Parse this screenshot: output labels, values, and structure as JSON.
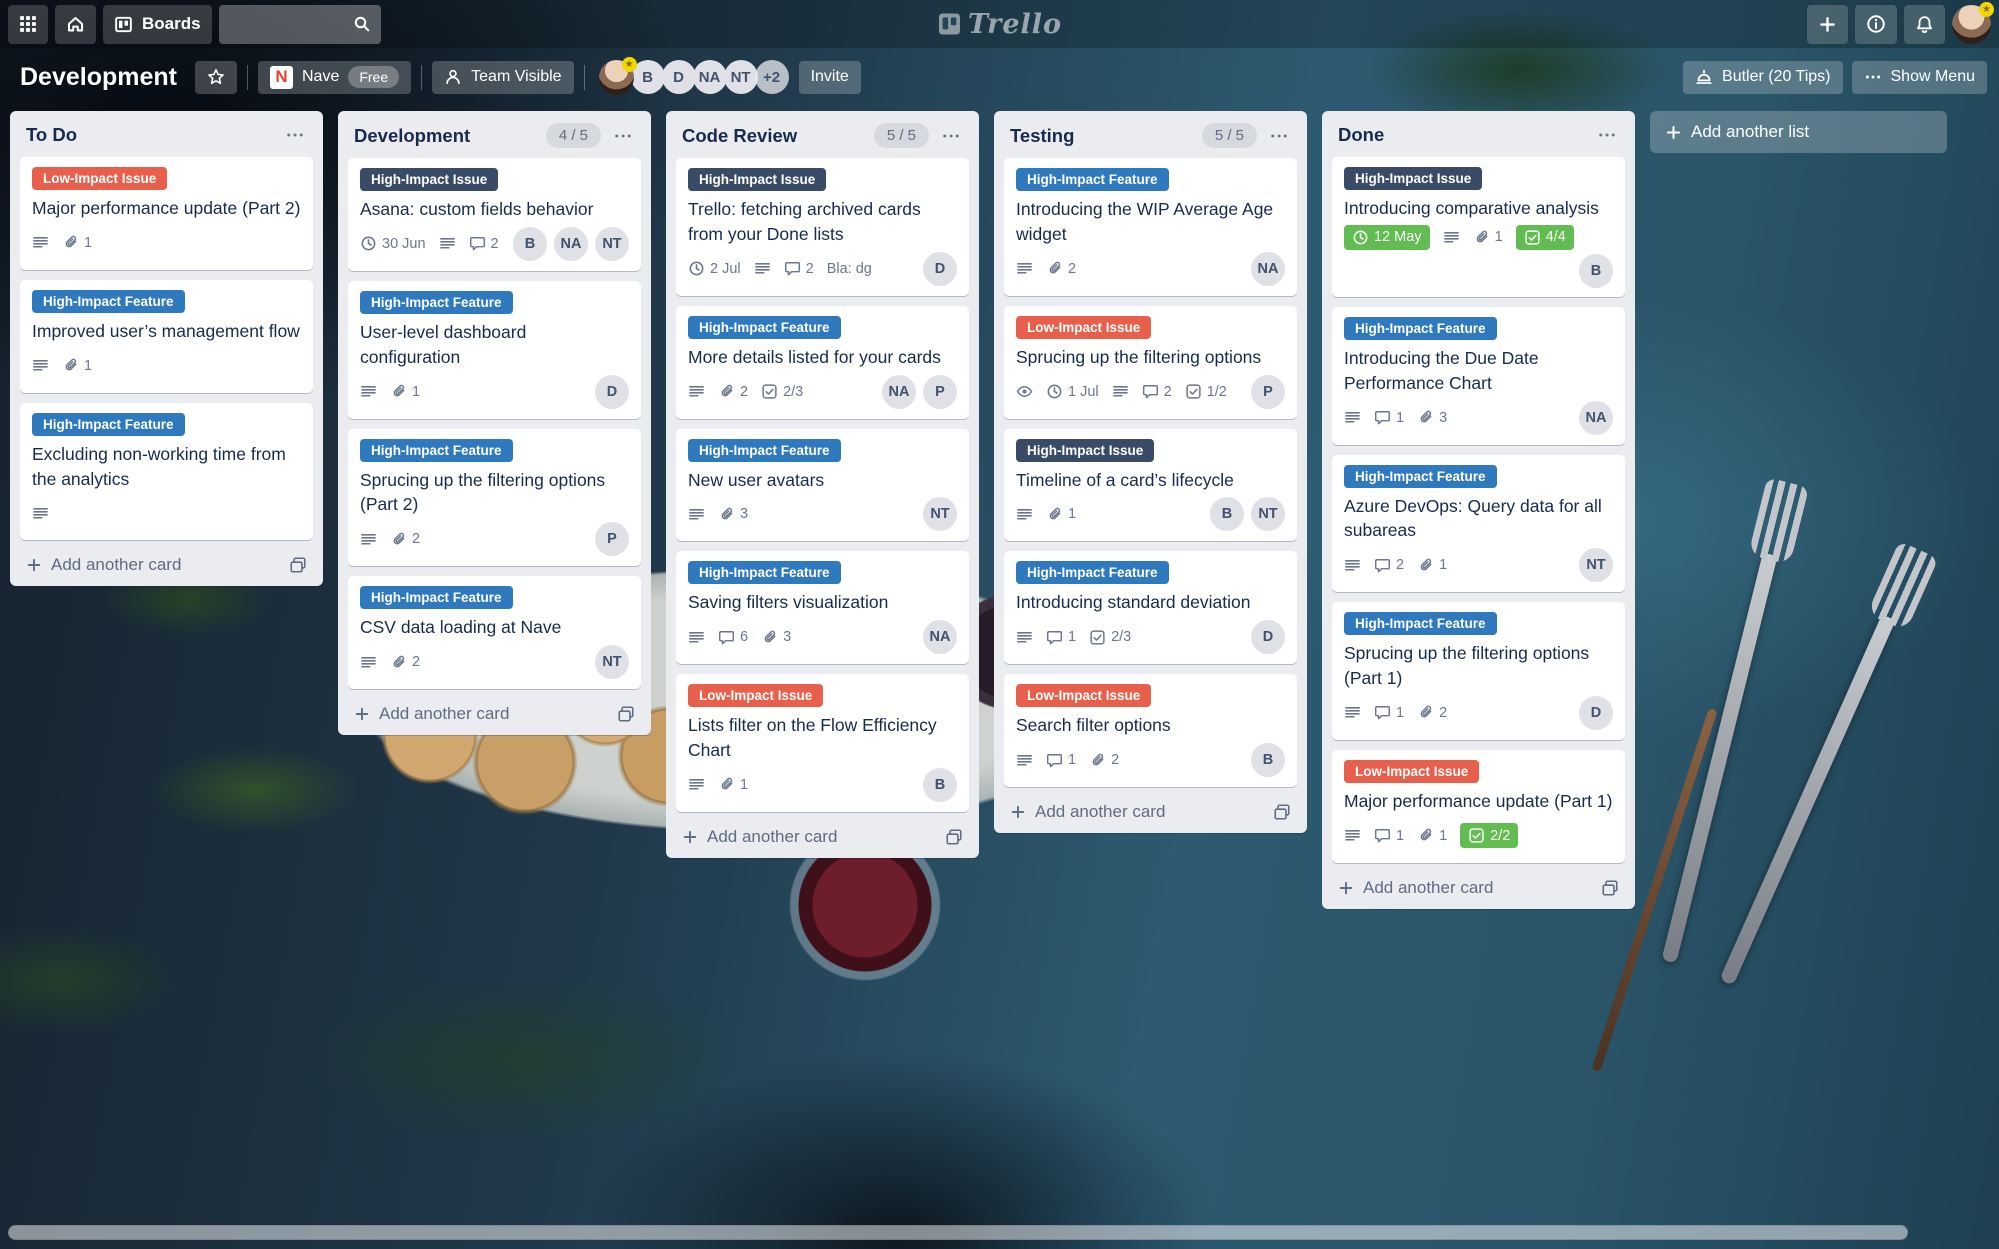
{
  "topbar": {
    "boards_label": "Boards",
    "search_placeholder": "",
    "logo_text": "Trello"
  },
  "board_header": {
    "title": "Development",
    "org_initial": "N",
    "org_name": "Nave",
    "org_plan": "Free",
    "visibility_label": "Team Visible",
    "member_initials": [
      "B",
      "D",
      "NA",
      "NT"
    ],
    "overflow_label": "+2",
    "invite_label": "Invite",
    "butler_label": "Butler (20 Tips)",
    "show_menu_label": "Show Menu"
  },
  "label_colors": {
    "red": "#e8604c",
    "blue": "#2f79bf",
    "navy": "#394b67"
  },
  "green_badge_color": "#61bd4f",
  "add_list_label": "Add another list",
  "lists": [
    {
      "title": "To Do",
      "count": null,
      "add_card_label": "Add another card",
      "cards": [
        {
          "label": {
            "text": "Low-Impact Issue",
            "color": "red"
          },
          "title": "Major performance update (Part 2)",
          "badges": [
            {
              "icon": "description-icon"
            },
            {
              "icon": "attachment-icon",
              "text": "1"
            }
          ],
          "members": []
        },
        {
          "label": {
            "text": "High-Impact Feature",
            "color": "blue"
          },
          "title": "Improved user’s management flow",
          "badges": [
            {
              "icon": "description-icon"
            },
            {
              "icon": "attachment-icon",
              "text": "1"
            }
          ],
          "members": []
        },
        {
          "label": {
            "text": "High-Impact Feature",
            "color": "blue"
          },
          "title": "Excluding non-working time from the analytics",
          "badges": [
            {
              "icon": "description-icon"
            }
          ],
          "members": []
        }
      ]
    },
    {
      "title": "Development",
      "count": "4 / 5",
      "add_card_label": "Add another card",
      "cards": [
        {
          "label": {
            "text": "High-Impact Issue",
            "color": "navy"
          },
          "title": "Asana: custom fields behavior",
          "badges": [
            {
              "icon": "clock-icon",
              "text": "30 Jun"
            },
            {
              "icon": "description-icon"
            },
            {
              "icon": "comment-icon",
              "text": "2"
            }
          ],
          "members": [
            "B",
            "NA",
            "NT"
          ]
        },
        {
          "label": {
            "text": "High-Impact Feature",
            "color": "blue"
          },
          "title": "User-level dashboard configuration",
          "badges": [
            {
              "icon": "description-icon"
            },
            {
              "icon": "attachment-icon",
              "text": "1"
            }
          ],
          "members": [
            "D"
          ]
        },
        {
          "label": {
            "text": "High-Impact Feature",
            "color": "blue"
          },
          "title": "Sprucing up the filtering options (Part 2)",
          "badges": [
            {
              "icon": "description-icon"
            },
            {
              "icon": "attachment-icon",
              "text": "2"
            }
          ],
          "members": [
            "P"
          ]
        },
        {
          "label": {
            "text": "High-Impact Feature",
            "color": "blue"
          },
          "title": "CSV data loading at Nave",
          "badges": [
            {
              "icon": "description-icon"
            },
            {
              "icon": "attachment-icon",
              "text": "2"
            }
          ],
          "members": [
            "NT"
          ]
        }
      ]
    },
    {
      "title": "Code Review",
      "count": "5 / 5",
      "add_card_label": "Add another card",
      "cards": [
        {
          "label": {
            "text": "High-Impact Issue",
            "color": "navy"
          },
          "title": "Trello: fetching archived cards from your Done lists",
          "badges": [
            {
              "icon": "clock-icon",
              "text": "2 Jul"
            },
            {
              "icon": "description-icon"
            },
            {
              "icon": "comment-icon",
              "text": "2"
            },
            {
              "text": "Bla: dg"
            }
          ],
          "members": [
            "D"
          ]
        },
        {
          "label": {
            "text": "High-Impact Feature",
            "color": "blue"
          },
          "title": "More details listed for your cards",
          "badges": [
            {
              "icon": "description-icon"
            },
            {
              "icon": "attachment-icon",
              "text": "2"
            },
            {
              "icon": "checklist-icon",
              "text": "2/3"
            }
          ],
          "members": [
            "NA",
            "P"
          ]
        },
        {
          "label": {
            "text": "High-Impact Feature",
            "color": "blue"
          },
          "title": "New user avatars",
          "badges": [
            {
              "icon": "description-icon"
            },
            {
              "icon": "attachment-icon",
              "text": "3"
            }
          ],
          "members": [
            "NT"
          ]
        },
        {
          "label": {
            "text": "High-Impact Feature",
            "color": "blue"
          },
          "title": "Saving filters visualization",
          "badges": [
            {
              "icon": "description-icon"
            },
            {
              "icon": "comment-icon",
              "text": "6"
            },
            {
              "icon": "attachment-icon",
              "text": "3"
            }
          ],
          "members": [
            "NA"
          ]
        },
        {
          "label": {
            "text": "Low-Impact Issue",
            "color": "red"
          },
          "title": "Lists filter on the Flow Efficiency Chart",
          "badges": [
            {
              "icon": "description-icon"
            },
            {
              "icon": "attachment-icon",
              "text": "1"
            }
          ],
          "members": [
            "B"
          ]
        }
      ]
    },
    {
      "title": "Testing",
      "count": "5 / 5",
      "add_card_label": "Add another card",
      "cards": [
        {
          "label": {
            "text": "High-Impact Feature",
            "color": "blue"
          },
          "title": "Introducing the WIP Average Age widget",
          "badges": [
            {
              "icon": "description-icon"
            },
            {
              "icon": "attachment-icon",
              "text": "2"
            }
          ],
          "members": [
            "NA"
          ]
        },
        {
          "label": {
            "text": "Low-Impact Issue",
            "color": "red"
          },
          "title": "Sprucing up the filtering options",
          "badges": [
            {
              "icon": "eye-icon"
            },
            {
              "icon": "clock-icon",
              "text": "1 Jul"
            },
            {
              "icon": "description-icon"
            },
            {
              "icon": "comment-icon",
              "text": "2"
            },
            {
              "icon": "checklist-icon",
              "text": "1/2"
            }
          ],
          "members": [
            "P"
          ]
        },
        {
          "label": {
            "text": "High-Impact Issue",
            "color": "navy"
          },
          "title": "Timeline of a card’s lifecycle",
          "badges": [
            {
              "icon": "description-icon"
            },
            {
              "icon": "attachment-icon",
              "text": "1"
            }
          ],
          "members": [
            "B",
            "NT"
          ]
        },
        {
          "label": {
            "text": "High-Impact Feature",
            "color": "blue"
          },
          "title": "Introducing standard deviation",
          "badges": [
            {
              "icon": "description-icon"
            },
            {
              "icon": "comment-icon",
              "text": "1"
            },
            {
              "icon": "checklist-icon",
              "text": "2/3"
            }
          ],
          "members": [
            "D"
          ]
        },
        {
          "label": {
            "text": "Low-Impact Issue",
            "color": "red"
          },
          "title": "Search filter options",
          "badges": [
            {
              "icon": "description-icon"
            },
            {
              "icon": "comment-icon",
              "text": "1"
            },
            {
              "icon": "attachment-icon",
              "text": "2"
            }
          ],
          "members": [
            "B"
          ]
        }
      ]
    },
    {
      "title": "Done",
      "count": null,
      "add_card_label": "Add another card",
      "cards": [
        {
          "label": {
            "text": "High-Impact Issue",
            "color": "navy"
          },
          "title": "Introducing comparative analysis",
          "badges": [
            {
              "icon": "clock-icon",
              "text": "12 May",
              "green": true
            },
            {
              "icon": "description-icon"
            },
            {
              "icon": "attachment-icon",
              "text": "1"
            },
            {
              "icon": "checklist-icon",
              "text": "4/4",
              "green": true
            }
          ],
          "members": [
            "B"
          ]
        },
        {
          "label": {
            "text": "High-Impact Feature",
            "color": "blue"
          },
          "title": "Introducing the Due Date Performance Chart",
          "badges": [
            {
              "icon": "description-icon"
            },
            {
              "icon": "comment-icon",
              "text": "1"
            },
            {
              "icon": "attachment-icon",
              "text": "3"
            }
          ],
          "members": [
            "NA"
          ]
        },
        {
          "label": {
            "text": "High-Impact Feature",
            "color": "blue"
          },
          "title": "Azure DevOps: Query data for all subareas",
          "badges": [
            {
              "icon": "description-icon"
            },
            {
              "icon": "comment-icon",
              "text": "2"
            },
            {
              "icon": "attachment-icon",
              "text": "1"
            }
          ],
          "members": [
            "NT"
          ]
        },
        {
          "label": {
            "text": "High-Impact Feature",
            "color": "blue"
          },
          "title": "Sprucing up the filtering options (Part 1)",
          "badges": [
            {
              "icon": "description-icon"
            },
            {
              "icon": "comment-icon",
              "text": "1"
            },
            {
              "icon": "attachment-icon",
              "text": "2"
            }
          ],
          "members": [
            "D"
          ]
        },
        {
          "label": {
            "text": "Low-Impact Issue",
            "color": "red"
          },
          "title": "Major performance update (Part 1)",
          "badges": [
            {
              "icon": "description-icon"
            },
            {
              "icon": "comment-icon",
              "text": "1"
            },
            {
              "icon": "attachment-icon",
              "text": "1"
            },
            {
              "icon": "checklist-icon",
              "text": "2/2",
              "green": true
            }
          ],
          "members": []
        }
      ]
    }
  ]
}
